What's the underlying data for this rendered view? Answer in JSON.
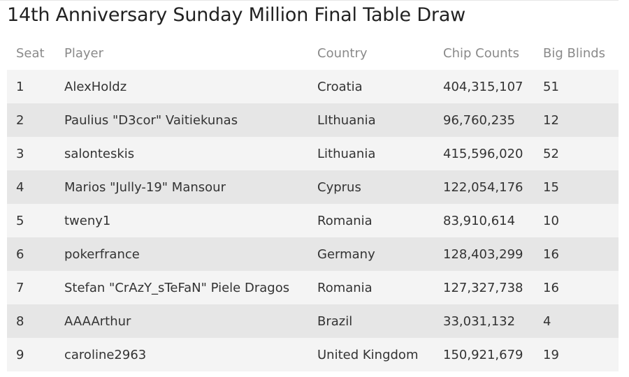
{
  "page": {
    "title": "14th Anniversary Sunday Million Final Table Draw"
  },
  "table": {
    "headers": {
      "seat": "Seat",
      "player": "Player",
      "country": "Country",
      "chips": "Chip Counts",
      "bb": "Big Blinds"
    },
    "rows": [
      {
        "seat": "1",
        "player": "AlexHoldz",
        "country": "Croatia",
        "chips": "404,315,107",
        "bb": "51"
      },
      {
        "seat": "2",
        "player": "Paulius \"D3cor\" Vaitiekunas",
        "country": "LIthuania",
        "chips": "96,760,235",
        "bb": "12"
      },
      {
        "seat": "3",
        "player": "salonteskis",
        "country": "Lithuania",
        "chips": "415,596,020",
        "bb": "52"
      },
      {
        "seat": "4",
        "player": "Marios \"Jully-19\" Mansour",
        "country": "Cyprus",
        "chips": "122,054,176",
        "bb": "15"
      },
      {
        "seat": "5",
        "player": "tweny1",
        "country": "Romania",
        "chips": "83,910,614",
        "bb": "10"
      },
      {
        "seat": "6",
        "player": "pokerfrance",
        "country": "Germany",
        "chips": "128,403,299",
        "bb": "16"
      },
      {
        "seat": "7",
        "player": "Stefan \"CrAzY_sTeFaN\" Piele Dragos",
        "country": "Romania",
        "chips": "127,327,738",
        "bb": "16"
      },
      {
        "seat": "8",
        "player": "AAAArthur",
        "country": "Brazil",
        "chips": "33,031,132",
        "bb": "4"
      },
      {
        "seat": "9",
        "player": "caroline2963",
        "country": "United Kingdom",
        "chips": "150,921,679",
        "bb": "19"
      }
    ]
  }
}
